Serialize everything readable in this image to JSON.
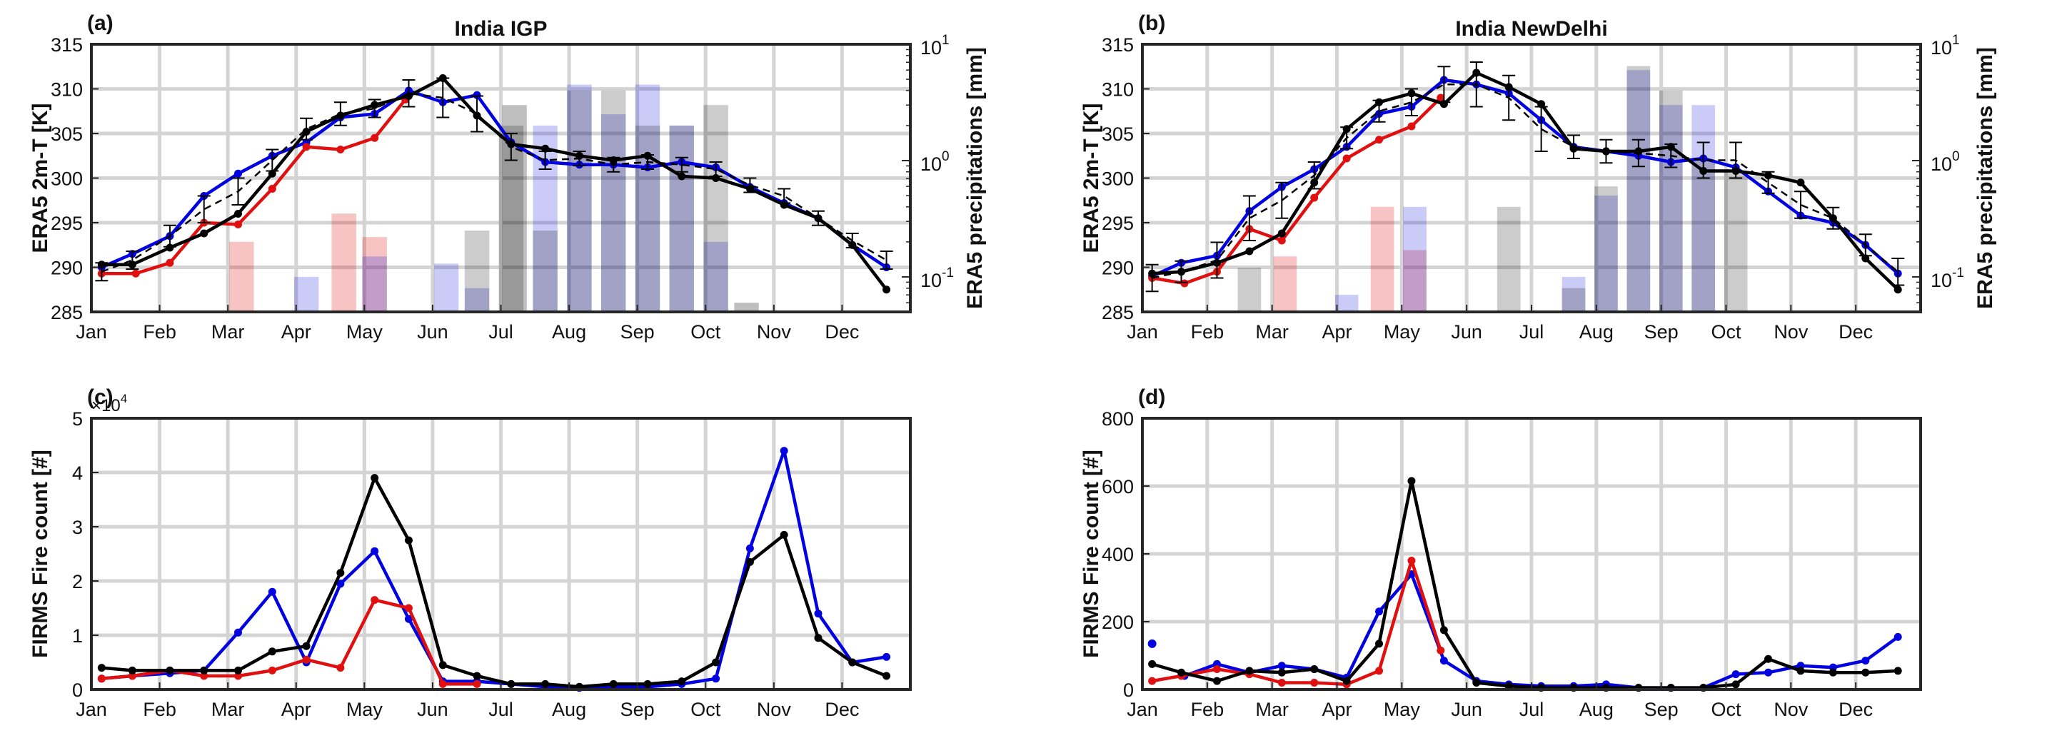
{
  "chart_data": [
    {
      "panel": "(a)",
      "type": "line",
      "title": "India IGP",
      "ylabel": "ERA5 2m-T [K]",
      "y2label": "ERA5 precipitations [mm]",
      "ylim": [
        285,
        315
      ],
      "yticks": [
        285,
        290,
        295,
        300,
        305,
        310,
        315
      ],
      "y2lim": [
        0.05,
        10
      ],
      "y2scale": "log",
      "y2ticks": [
        0.1,
        1,
        10
      ],
      "y2ticklabels": [
        [
          "10",
          "-1"
        ],
        [
          "10",
          "0"
        ],
        [
          "10",
          "1"
        ]
      ],
      "xlim": [
        0,
        12
      ],
      "xticklabels": [
        "Jan",
        "Feb",
        "Mar",
        "Apr",
        "May",
        "Jun",
        "Jul",
        "Aug",
        "Sep",
        "Oct",
        "Nov",
        "Dec"
      ],
      "grid": true,
      "series": [
        {
          "color": "#0000e0",
          "style": "solid",
          "x": [
            0.15,
            0.6,
            1.15,
            1.65,
            2.15,
            2.65,
            3.15,
            3.65,
            4.15,
            4.65,
            5.15,
            5.65,
            6.15,
            6.65,
            7.15,
            7.65,
            8.15,
            8.65,
            9.15,
            9.65,
            10.15,
            10.65,
            11.15,
            11.65
          ],
          "y": [
            290.0,
            291.5,
            293.5,
            298.0,
            300.5,
            302.5,
            304.0,
            306.8,
            307.2,
            309.8,
            308.5,
            309.3,
            304.0,
            301.8,
            301.5,
            301.5,
            301.2,
            301.8,
            301.2,
            299.0,
            297.2,
            295.5,
            292.5,
            290.0
          ]
        },
        {
          "color": "#e01010",
          "style": "solid",
          "x": [
            0.15,
            0.65,
            1.15,
            1.65,
            2.15,
            2.65,
            3.15,
            3.65,
            4.15,
            4.6
          ],
          "y": [
            289.3,
            289.3,
            290.5,
            295.0,
            294.8,
            298.8,
            303.5,
            303.2,
            304.5,
            308.8
          ]
        },
        {
          "color": "#000000",
          "style": "solid",
          "x": [
            0.15,
            0.6,
            1.15,
            1.65,
            2.15,
            2.65,
            3.15,
            3.65,
            4.15,
            4.65,
            5.15,
            5.65,
            6.15,
            6.65,
            7.15,
            7.65,
            8.15,
            8.65,
            9.15,
            9.65,
            10.15,
            10.65,
            11.15,
            11.65
          ],
          "y": [
            290.3,
            290.3,
            292.2,
            293.8,
            296.0,
            300.5,
            305.2,
            307.0,
            308.2,
            309.2,
            311.2,
            307.0,
            303.8,
            303.3,
            302.5,
            302.0,
            302.5,
            300.2,
            300.0,
            298.8,
            297.0,
            295.5,
            292.5,
            287.5
          ]
        },
        {
          "color": "#000000",
          "style": "dashed",
          "x": [
            0.15,
            0.6,
            1.15,
            1.65,
            2.15,
            2.65,
            3.15,
            3.65,
            4.15,
            4.65,
            5.15,
            5.65,
            6.15,
            6.65,
            7.15,
            7.65,
            8.15,
            8.65,
            9.15,
            9.65,
            10.15,
            10.65,
            11.15,
            11.65
          ],
          "y": [
            289.5,
            290.8,
            293.5,
            296.5,
            298.5,
            302.0,
            305.5,
            307.2,
            307.8,
            309.5,
            309.0,
            307.2,
            303.5,
            302.0,
            302.2,
            301.5,
            301.8,
            301.5,
            301.0,
            299.2,
            298.0,
            295.5,
            293.0,
            290.8
          ],
          "err": [
            1.0,
            1.0,
            1.2,
            1.5,
            1.5,
            1.2,
            1.2,
            1.3,
            1.0,
            1.5,
            2.2,
            2.0,
            1.5,
            1.0,
            0.8,
            0.8,
            0.8,
            0.8,
            0.8,
            0.8,
            0.8,
            0.8,
            0.8,
            1.0
          ]
        }
      ],
      "bars": [
        {
          "color": "#e01010",
          "alpha": 0.25,
          "x": [
            2.2,
            3.7,
            4.15
          ],
          "values": [
            0.2,
            0.35,
            0.22
          ]
        },
        {
          "color": "#1010e0",
          "alpha": 0.22,
          "x": [
            3.15,
            4.15,
            5.2,
            5.65,
            6.65,
            7.15,
            7.65,
            8.15,
            8.65,
            9.15
          ],
          "values": [
            0.1,
            0.15,
            0.13,
            0.08,
            2.0,
            4.5,
            2.5,
            4.5,
            2.0,
            0.2
          ]
        },
        {
          "color": "#000000",
          "alpha": 0.2,
          "x": [
            5.65,
            6.15,
            6.65,
            7.15,
            7.65,
            8.15,
            8.65,
            9.15
          ],
          "values": [
            0.25,
            2.0,
            0.25,
            4.0,
            4.0,
            2.0,
            2.0,
            3.0
          ]
        },
        {
          "color": "#000000",
          "alpha": 0.25,
          "x": [
            6.2,
            9.6
          ],
          "values": [
            3.0,
            0.06
          ]
        }
      ]
    },
    {
      "panel": "(b)",
      "type": "line",
      "title": "India NewDelhi",
      "ylabel": "ERA5 2m-T [K]",
      "y2label": "ERA5 precipitations [mm]",
      "ylim": [
        285,
        315
      ],
      "yticks": [
        285,
        290,
        295,
        300,
        305,
        310,
        315
      ],
      "y2lim": [
        0.05,
        10
      ],
      "y2scale": "log",
      "y2ticks": [
        0.1,
        1,
        10
      ],
      "y2ticklabels": [
        [
          "10",
          "-1"
        ],
        [
          "10",
          "0"
        ],
        [
          "10",
          "1"
        ]
      ],
      "xlim": [
        0,
        12
      ],
      "xticklabels": [
        "Jan",
        "Feb",
        "Mar",
        "Apr",
        "May",
        "Jun",
        "Jul",
        "Aug",
        "Sep",
        "Oct",
        "Nov",
        "Dec"
      ],
      "grid": true,
      "series": [
        {
          "color": "#0000e0",
          "style": "solid",
          "x": [
            0.15,
            0.6,
            1.15,
            1.65,
            2.15,
            2.65,
            3.15,
            3.65,
            4.15,
            4.65,
            5.15,
            5.65,
            6.15,
            6.65,
            7.15,
            7.65,
            8.15,
            8.65,
            9.15,
            9.65,
            10.15,
            10.65,
            11.15,
            11.65
          ],
          "y": [
            289.0,
            290.5,
            291.3,
            296.3,
            299.0,
            301.0,
            303.5,
            307.2,
            308.0,
            311.0,
            310.5,
            309.5,
            306.5,
            303.5,
            303.0,
            302.5,
            301.8,
            302.2,
            301.2,
            298.5,
            295.8,
            295.0,
            292.5,
            289.3
          ]
        },
        {
          "color": "#e01010",
          "style": "solid",
          "x": [
            0.15,
            0.65,
            1.15,
            1.65,
            2.15,
            2.65,
            3.15,
            3.65,
            4.15,
            4.6
          ],
          "y": [
            288.8,
            288.2,
            289.5,
            294.3,
            293.0,
            297.8,
            302.2,
            304.3,
            305.8,
            309.0
          ]
        },
        {
          "color": "#000000",
          "style": "solid",
          "x": [
            0.15,
            0.6,
            1.15,
            1.65,
            2.15,
            2.65,
            3.15,
            3.65,
            4.15,
            4.65,
            5.15,
            5.65,
            6.15,
            6.65,
            7.15,
            7.65,
            8.15,
            8.65,
            9.15,
            9.65,
            10.15,
            10.65,
            11.15,
            11.65
          ],
          "y": [
            289.3,
            289.5,
            290.5,
            291.8,
            293.8,
            299.5,
            305.5,
            308.5,
            309.5,
            308.3,
            311.8,
            310.2,
            308.3,
            303.3,
            303.0,
            303.0,
            303.5,
            300.8,
            300.8,
            300.3,
            299.5,
            295.5,
            291.0,
            287.5
          ]
        },
        {
          "color": "#000000",
          "style": "dashed",
          "x": [
            0.15,
            0.6,
            1.15,
            1.65,
            2.15,
            2.65,
            3.15,
            3.65,
            4.15,
            4.65,
            5.15,
            5.65,
            6.15,
            6.65,
            7.15,
            7.65,
            8.15,
            8.65,
            9.15,
            9.65,
            10.15,
            10.65,
            11.15,
            11.65
          ],
          "y": [
            288.8,
            289.5,
            290.8,
            295.5,
            297.5,
            300.3,
            304.5,
            307.5,
            308.5,
            310.5,
            310.5,
            309.0,
            305.5,
            303.5,
            303.0,
            302.8,
            302.5,
            302.0,
            302.0,
            299.5,
            297.0,
            295.5,
            292.5,
            289.5
          ],
          "err": [
            1.5,
            1.2,
            2.0,
            2.5,
            2.0,
            1.5,
            1.2,
            1.2,
            1.5,
            2.0,
            2.5,
            2.5,
            2.5,
            1.3,
            1.3,
            1.5,
            1.3,
            2.0,
            2.0,
            1.2,
            1.5,
            1.2,
            1.2,
            1.5
          ]
        }
      ],
      "bars": [
        {
          "color": "#e01010",
          "alpha": 0.25,
          "x": [
            2.2,
            3.7,
            4.2
          ],
          "values": [
            0.15,
            0.4,
            0.17
          ]
        },
        {
          "color": "#1010e0",
          "alpha": 0.22,
          "x": [
            3.15,
            4.2,
            6.65,
            7.15,
            7.65,
            8.15,
            8.65
          ],
          "values": [
            0.07,
            0.4,
            0.1,
            0.5,
            6.0,
            3.0,
            3.0
          ]
        },
        {
          "color": "#000000",
          "alpha": 0.2,
          "x": [
            1.65,
            5.65,
            6.65,
            7.15,
            7.65,
            8.15,
            8.65,
            9.15
          ],
          "values": [
            0.12,
            0.4,
            0.08,
            0.6,
            6.5,
            4.0,
            1.0,
            0.8
          ]
        }
      ]
    },
    {
      "panel": "(c)",
      "type": "line",
      "title": "",
      "ylabel": "FIRMS Fire count [#]",
      "ylim": [
        0,
        5
      ],
      "yticks": [
        0,
        1,
        2,
        3,
        4,
        5
      ],
      "ymultiplier": [
        "×10",
        "4"
      ],
      "xlim": [
        0,
        12
      ],
      "xticklabels": [
        "Jan",
        "Feb",
        "Mar",
        "Apr",
        "May",
        "Jun",
        "Jul",
        "Aug",
        "Sep",
        "Oct",
        "Nov",
        "Dec"
      ],
      "grid": true,
      "series": [
        {
          "color": "#0000e0",
          "style": "solid",
          "x": [
            0.15,
            0.6,
            1.15,
            1.65,
            2.15,
            2.65,
            3.15,
            3.65,
            4.15,
            4.65,
            5.15,
            5.65,
            6.15,
            6.65,
            7.15,
            7.65,
            8.15,
            8.65,
            9.15,
            9.65,
            10.15,
            10.65,
            11.15,
            11.65
          ],
          "y": [
            0.2,
            0.25,
            0.3,
            0.35,
            1.05,
            1.8,
            0.5,
            1.95,
            2.55,
            1.3,
            0.15,
            0.15,
            0.1,
            0.05,
            0.03,
            0.05,
            0.05,
            0.1,
            0.2,
            2.6,
            4.4,
            1.4,
            0.5,
            0.6
          ]
        },
        {
          "color": "#e01010",
          "style": "solid",
          "x": [
            0.15,
            0.6,
            1.15,
            1.65,
            2.15,
            2.65,
            3.15,
            3.65,
            4.15,
            4.65,
            5.15,
            5.65
          ],
          "y": [
            0.2,
            0.25,
            0.35,
            0.25,
            0.25,
            0.35,
            0.55,
            0.4,
            1.65,
            1.5,
            0.1,
            0.1
          ]
        },
        {
          "color": "#000000",
          "style": "solid",
          "x": [
            0.15,
            0.6,
            1.15,
            1.65,
            2.15,
            2.65,
            3.15,
            3.65,
            4.15,
            4.65,
            5.15,
            5.65,
            6.15,
            6.65,
            7.15,
            7.65,
            8.15,
            8.65,
            9.15,
            9.65,
            10.15,
            10.65,
            11.15,
            11.65
          ],
          "y": [
            0.4,
            0.35,
            0.35,
            0.35,
            0.35,
            0.7,
            0.8,
            2.15,
            3.9,
            2.75,
            0.45,
            0.25,
            0.1,
            0.1,
            0.05,
            0.1,
            0.1,
            0.15,
            0.5,
            2.35,
            2.85,
            0.95,
            0.5,
            0.25
          ]
        }
      ]
    },
    {
      "panel": "(d)",
      "type": "line",
      "title": "",
      "ylabel": "FIRMS Fire count [#]",
      "ylim": [
        0,
        800
      ],
      "yticks": [
        0,
        200,
        400,
        600,
        800
      ],
      "xlim": [
        0,
        12
      ],
      "xticklabels": [
        "Jan",
        "Feb",
        "Mar",
        "Apr",
        "May",
        "Jun",
        "Jul",
        "Aug",
        "Sep",
        "Oct",
        "Nov",
        "Dec"
      ],
      "grid": true,
      "series": [
        {
          "color": "#0000e0",
          "style": "solid",
          "x": [
            0.15,
            0.65,
            1.15,
            1.65,
            2.15,
            2.65,
            3.15,
            3.65,
            4.15,
            4.65,
            5.15,
            5.65,
            6.15,
            6.65,
            7.15,
            7.65,
            8.15,
            8.65,
            9.15,
            9.65,
            10.15,
            10.65,
            11.15,
            11.65
          ],
          "y": [
            null,
            40,
            75,
            50,
            70,
            60,
            35,
            230,
            340,
            85,
            25,
            15,
            10,
            10,
            15,
            5,
            5,
            5,
            45,
            50,
            70,
            65,
            85,
            155
          ]
        },
        {
          "color": "#0000e0",
          "style": "point",
          "x": [
            0.15
          ],
          "y": [
            135
          ]
        },
        {
          "color": "#e01010",
          "style": "solid",
          "x": [
            0.15,
            0.6,
            1.15,
            1.65,
            2.15,
            2.65,
            3.15,
            3.65,
            4.15,
            4.6
          ],
          "y": [
            25,
            40,
            60,
            45,
            20,
            20,
            15,
            55,
            380,
            115
          ]
        },
        {
          "color": "#000000",
          "style": "solid",
          "x": [
            0.15,
            0.6,
            1.15,
            1.65,
            2.15,
            2.65,
            3.15,
            3.65,
            4.15,
            4.65,
            5.15,
            5.65,
            6.15,
            6.65,
            7.15,
            7.65,
            8.15,
            8.65,
            9.15,
            9.65,
            10.15,
            10.65,
            11.15,
            11.65
          ],
          "y": [
            75,
            50,
            25,
            55,
            50,
            60,
            25,
            135,
            615,
            175,
            20,
            10,
            5,
            5,
            5,
            5,
            5,
            5,
            15,
            90,
            55,
            50,
            50,
            55
          ]
        }
      ]
    }
  ]
}
